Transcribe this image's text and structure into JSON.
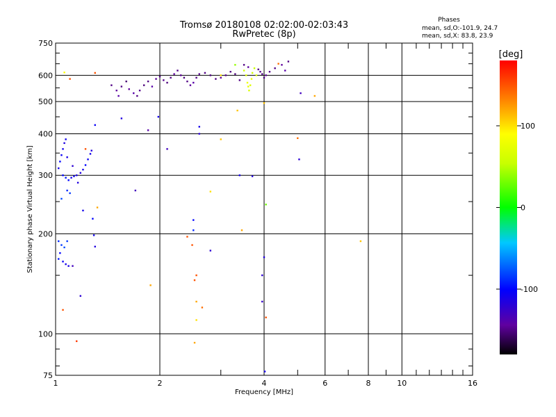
{
  "chart_data": {
    "type": "scatter",
    "title": "Tromsø 20180108 02:02:00-02:03:43",
    "subtitle": "RwPretec (8p)",
    "xlabel": "Frequency [MHz]",
    "ylabel": "Stationary phase Virtual Height [km]",
    "x_scale": "log",
    "y_scale": "log",
    "xlim": [
      1,
      16
    ],
    "ylim": [
      75,
      750
    ],
    "x_ticks": [
      "1",
      "2",
      "4",
      "6",
      "8",
      "10",
      "16"
    ],
    "y_ticks": [
      "75",
      "100",
      "200",
      "300",
      "400",
      "500",
      "600",
      "750"
    ],
    "grid": true,
    "stats": {
      "heading": "Phases",
      "line_o": "mean, sd,O:-101.9, 24.7",
      "line_x": "mean, sd,X:  83.8, 23.9"
    },
    "colorbar": {
      "label": "[deg]",
      "range": [
        -180,
        180
      ],
      "ticks": [
        "100",
        "0",
        "-100"
      ],
      "tick_values": [
        100,
        0,
        -100
      ]
    },
    "points": [
      {
        "x": 1.02,
        "y": 315,
        "phase": -110
      },
      {
        "x": 1.03,
        "y": 330,
        "phase": -100
      },
      {
        "x": 1.04,
        "y": 345,
        "phase": -105
      },
      {
        "x": 1.05,
        "y": 360,
        "phase": -110
      },
      {
        "x": 1.06,
        "y": 375,
        "phase": -115
      },
      {
        "x": 1.07,
        "y": 385,
        "phase": -108
      },
      {
        "x": 1.05,
        "y": 300,
        "phase": -100
      },
      {
        "x": 1.07,
        "y": 295,
        "phase": -95
      },
      {
        "x": 1.09,
        "y": 290,
        "phase": -100
      },
      {
        "x": 1.11,
        "y": 295,
        "phase": -110
      },
      {
        "x": 1.13,
        "y": 298,
        "phase": -105
      },
      {
        "x": 1.15,
        "y": 300,
        "phase": -112
      },
      {
        "x": 1.18,
        "y": 305,
        "phase": -115
      },
      {
        "x": 1.2,
        "y": 312,
        "phase": -110
      },
      {
        "x": 1.22,
        "y": 322,
        "phase": -100
      },
      {
        "x": 1.24,
        "y": 335,
        "phase": -105
      },
      {
        "x": 1.26,
        "y": 348,
        "phase": -110
      },
      {
        "x": 1.27,
        "y": 356,
        "phase": -115
      },
      {
        "x": 1.08,
        "y": 270,
        "phase": -90
      },
      {
        "x": 1.1,
        "y": 265,
        "phase": -85
      },
      {
        "x": 1.04,
        "y": 255,
        "phase": -80
      },
      {
        "x": 1.16,
        "y": 285,
        "phase": -115
      },
      {
        "x": 1.12,
        "y": 320,
        "phase": -120
      },
      {
        "x": 1.08,
        "y": 340,
        "phase": -112
      },
      {
        "x": 1.02,
        "y": 190,
        "phase": -90
      },
      {
        "x": 1.04,
        "y": 185,
        "phase": -85
      },
      {
        "x": 1.06,
        "y": 182,
        "phase": -80
      },
      {
        "x": 1.03,
        "y": 175,
        "phase": -100
      },
      {
        "x": 1.05,
        "y": 165,
        "phase": -105
      },
      {
        "x": 1.07,
        "y": 162,
        "phase": -110
      },
      {
        "x": 1.09,
        "y": 160,
        "phase": -112
      },
      {
        "x": 1.02,
        "y": 168,
        "phase": -95
      },
      {
        "x": 1.08,
        "y": 190,
        "phase": -85
      },
      {
        "x": 1.05,
        "y": 118,
        "phase": 150
      },
      {
        "x": 1.15,
        "y": 95,
        "phase": 160
      },
      {
        "x": 1.12,
        "y": 160,
        "phase": -130
      },
      {
        "x": 1.18,
        "y": 130,
        "phase": -120
      },
      {
        "x": 1.2,
        "y": 235,
        "phase": -110
      },
      {
        "x": 1.28,
        "y": 222,
        "phase": -100
      },
      {
        "x": 1.29,
        "y": 198,
        "phase": -108
      },
      {
        "x": 1.3,
        "y": 183,
        "phase": -115
      },
      {
        "x": 1.32,
        "y": 240,
        "phase": 120
      },
      {
        "x": 1.3,
        "y": 425,
        "phase": -105
      },
      {
        "x": 1.3,
        "y": 610,
        "phase": 150
      },
      {
        "x": 1.1,
        "y": 585,
        "phase": 150
      },
      {
        "x": 1.06,
        "y": 612,
        "phase": 90
      },
      {
        "x": 1.22,
        "y": 360,
        "phase": 150
      },
      {
        "x": 1.45,
        "y": 560,
        "phase": -150
      },
      {
        "x": 1.5,
        "y": 540,
        "phase": -145
      },
      {
        "x": 1.52,
        "y": 520,
        "phase": -140
      },
      {
        "x": 1.55,
        "y": 555,
        "phase": -150
      },
      {
        "x": 1.6,
        "y": 575,
        "phase": -155
      },
      {
        "x": 1.63,
        "y": 545,
        "phase": -145
      },
      {
        "x": 1.68,
        "y": 530,
        "phase": -140
      },
      {
        "x": 1.72,
        "y": 520,
        "phase": -150
      },
      {
        "x": 1.75,
        "y": 540,
        "phase": -148
      },
      {
        "x": 1.8,
        "y": 560,
        "phase": -152
      },
      {
        "x": 1.85,
        "y": 575,
        "phase": -150
      },
      {
        "x": 1.9,
        "y": 555,
        "phase": -140
      },
      {
        "x": 1.95,
        "y": 585,
        "phase": -145
      },
      {
        "x": 2.0,
        "y": 595,
        "phase": -150
      },
      {
        "x": 2.05,
        "y": 580,
        "phase": -148
      },
      {
        "x": 2.1,
        "y": 570,
        "phase": -152
      },
      {
        "x": 2.15,
        "y": 590,
        "phase": -150
      },
      {
        "x": 2.2,
        "y": 605,
        "phase": -145
      },
      {
        "x": 2.25,
        "y": 620,
        "phase": -150
      },
      {
        "x": 2.3,
        "y": 600,
        "phase": -148
      },
      {
        "x": 2.35,
        "y": 590,
        "phase": -152
      },
      {
        "x": 2.4,
        "y": 575,
        "phase": -150
      },
      {
        "x": 2.45,
        "y": 560,
        "phase": -145
      },
      {
        "x": 2.5,
        "y": 570,
        "phase": -140
      },
      {
        "x": 2.55,
        "y": 590,
        "phase": -150
      },
      {
        "x": 2.6,
        "y": 605,
        "phase": -148
      },
      {
        "x": 2.7,
        "y": 610,
        "phase": -150
      },
      {
        "x": 2.8,
        "y": 600,
        "phase": -152
      },
      {
        "x": 2.9,
        "y": 585,
        "phase": -150
      },
      {
        "x": 3.0,
        "y": 590,
        "phase": -145
      },
      {
        "x": 3.1,
        "y": 600,
        "phase": -148
      },
      {
        "x": 3.2,
        "y": 615,
        "phase": -150
      },
      {
        "x": 3.3,
        "y": 605,
        "phase": -152
      },
      {
        "x": 3.4,
        "y": 580,
        "phase": -150
      },
      {
        "x": 3.5,
        "y": 620,
        "phase": 60
      },
      {
        "x": 3.55,
        "y": 600,
        "phase": 70
      },
      {
        "x": 3.58,
        "y": 570,
        "phase": 80
      },
      {
        "x": 3.6,
        "y": 555,
        "phase": 75
      },
      {
        "x": 3.62,
        "y": 540,
        "phase": 65
      },
      {
        "x": 3.65,
        "y": 560,
        "phase": 70
      },
      {
        "x": 3.68,
        "y": 585,
        "phase": 80
      },
      {
        "x": 3.7,
        "y": 610,
        "phase": 60
      },
      {
        "x": 3.75,
        "y": 630,
        "phase": 55
      },
      {
        "x": 3.8,
        "y": 600,
        "phase": 65
      },
      {
        "x": 3.5,
        "y": 645,
        "phase": -150
      },
      {
        "x": 3.6,
        "y": 635,
        "phase": -145
      },
      {
        "x": 3.85,
        "y": 625,
        "phase": -150
      },
      {
        "x": 3.9,
        "y": 615,
        "phase": -148
      },
      {
        "x": 3.95,
        "y": 605,
        "phase": -152
      },
      {
        "x": 4.0,
        "y": 590,
        "phase": -150
      },
      {
        "x": 4.05,
        "y": 600,
        "phase": -145
      },
      {
        "x": 4.15,
        "y": 615,
        "phase": -148
      },
      {
        "x": 4.3,
        "y": 630,
        "phase": -150
      },
      {
        "x": 4.5,
        "y": 645,
        "phase": -145
      },
      {
        "x": 4.6,
        "y": 620,
        "phase": -140
      },
      {
        "x": 4.7,
        "y": 660,
        "phase": -150
      },
      {
        "x": 4.4,
        "y": 650,
        "phase": 140
      },
      {
        "x": 3.3,
        "y": 645,
        "phase": 40
      },
      {
        "x": 3.0,
        "y": 600,
        "phase": 100
      },
      {
        "x": 5.1,
        "y": 530,
        "phase": -130
      },
      {
        "x": 5.6,
        "y": 520,
        "phase": 120
      },
      {
        "x": 3.35,
        "y": 470,
        "phase": 110
      },
      {
        "x": 4.0,
        "y": 495,
        "phase": 110
      },
      {
        "x": 5.0,
        "y": 388,
        "phase": 140
      },
      {
        "x": 5.05,
        "y": 335,
        "phase": -120
      },
      {
        "x": 3.4,
        "y": 300,
        "phase": -110
      },
      {
        "x": 3.7,
        "y": 298,
        "phase": -115
      },
      {
        "x": 2.6,
        "y": 400,
        "phase": -120
      },
      {
        "x": 2.6,
        "y": 420,
        "phase": -110
      },
      {
        "x": 2.1,
        "y": 360,
        "phase": -130
      },
      {
        "x": 1.98,
        "y": 450,
        "phase": -110
      },
      {
        "x": 1.85,
        "y": 410,
        "phase": -140
      },
      {
        "x": 1.55,
        "y": 445,
        "phase": -115
      },
      {
        "x": 3.0,
        "y": 385,
        "phase": 110
      },
      {
        "x": 2.8,
        "y": 268,
        "phase": 100
      },
      {
        "x": 4.05,
        "y": 245,
        "phase": 30
      },
      {
        "x": 3.45,
        "y": 205,
        "phase": 120
      },
      {
        "x": 2.5,
        "y": 220,
        "phase": -100
      },
      {
        "x": 2.5,
        "y": 205,
        "phase": -90
      },
      {
        "x": 2.48,
        "y": 185,
        "phase": 150
      },
      {
        "x": 2.55,
        "y": 150,
        "phase": 150
      },
      {
        "x": 2.8,
        "y": 178,
        "phase": -120
      },
      {
        "x": 2.52,
        "y": 145,
        "phase": 150
      },
      {
        "x": 2.55,
        "y": 125,
        "phase": 120
      },
      {
        "x": 2.55,
        "y": 110,
        "phase": 100
      },
      {
        "x": 2.65,
        "y": 120,
        "phase": 140
      },
      {
        "x": 1.7,
        "y": 270,
        "phase": -130
      },
      {
        "x": 1.88,
        "y": 140,
        "phase": 120
      },
      {
        "x": 4.0,
        "y": 170,
        "phase": -115
      },
      {
        "x": 3.95,
        "y": 150,
        "phase": -120
      },
      {
        "x": 3.95,
        "y": 125,
        "phase": -125
      },
      {
        "x": 4.05,
        "y": 112,
        "phase": 150
      },
      {
        "x": 2.52,
        "y": 94,
        "phase": 120
      },
      {
        "x": 4.02,
        "y": 77,
        "phase": -110
      },
      {
        "x": 7.6,
        "y": 190,
        "phase": 110
      },
      {
        "x": 2.4,
        "y": 196,
        "phase": 150
      }
    ]
  }
}
